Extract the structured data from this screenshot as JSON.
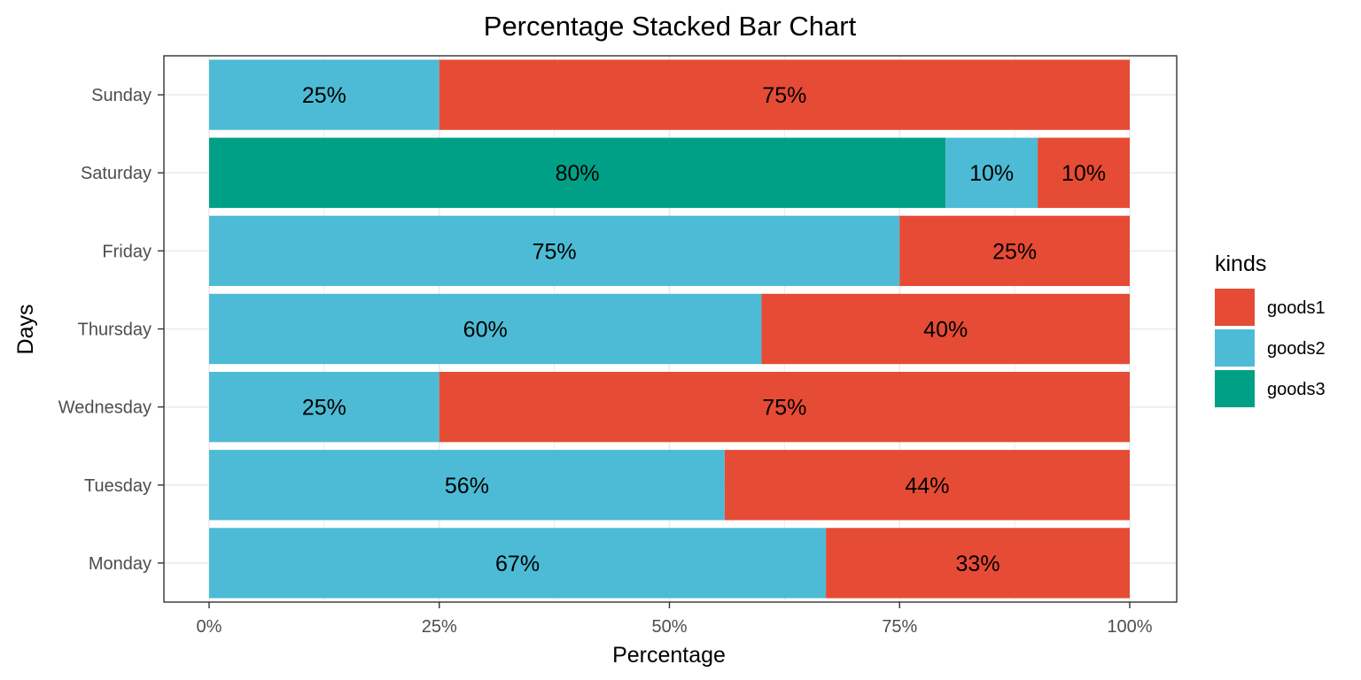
{
  "chart_data": {
    "type": "bar",
    "orientation": "horizontal",
    "stacked": "percent",
    "title": "Percentage Stacked Bar Chart",
    "xlabel": "Percentage",
    "ylabel": "Days",
    "xlim": [
      0,
      100
    ],
    "x_ticks": [
      "0%",
      "25%",
      "50%",
      "75%",
      "100%"
    ],
    "categories": [
      "Monday",
      "Tuesday",
      "Wednesday",
      "Thursday",
      "Friday",
      "Saturday",
      "Sunday"
    ],
    "stack_order": [
      "goods3",
      "goods2",
      "goods1"
    ],
    "series": [
      {
        "name": "goods1",
        "color": "#E64B35",
        "values": [
          33,
          44,
          75,
          40,
          25,
          10,
          75
        ],
        "labels": [
          "33%",
          "44%",
          "75%",
          "40%",
          "25%",
          "10%",
          "75%"
        ]
      },
      {
        "name": "goods2",
        "color": "#4DBBD5",
        "values": [
          67,
          56,
          25,
          60,
          75,
          10,
          25
        ],
        "labels": [
          "67%",
          "56%",
          "25%",
          "60%",
          "75%",
          "10%",
          "25%"
        ]
      },
      {
        "name": "goods3",
        "color": "#00A087",
        "values": [
          0,
          0,
          0,
          0,
          0,
          80,
          0
        ],
        "labels": [
          "",
          "",
          "",
          "",
          "",
          "80%",
          ""
        ]
      }
    ],
    "legend": {
      "title": "kinds",
      "position": "right",
      "items": [
        "goods1",
        "goods2",
        "goods3"
      ]
    },
    "grid": true,
    "theme": {
      "grid_color": "#ebebeb",
      "border_color": "#333333"
    }
  }
}
